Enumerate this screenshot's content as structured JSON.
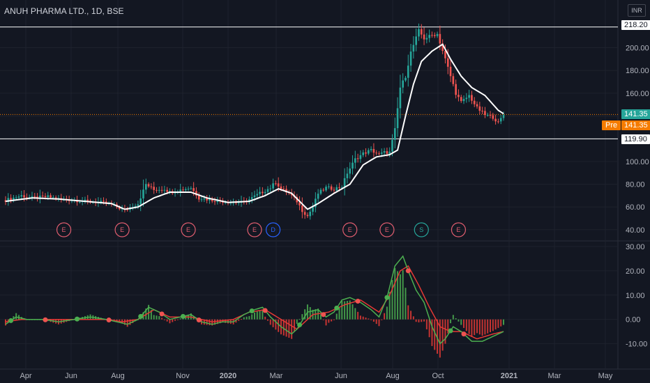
{
  "header": {
    "symbol_title": "ANUH PHARMA LTD., 1D, BSE",
    "currency_label": "INR"
  },
  "price_tags": {
    "high_line": "218.20",
    "last_price": "141.35",
    "pre_label": "Pre",
    "pre_price": "141.35",
    "low_line": "119.90"
  },
  "colors": {
    "background": "#131722",
    "grid": "#1e222d",
    "price_up": "#26a69a",
    "price_down": "#ef5350",
    "ma_line": "#ffffff",
    "dotted_last": "#f57c00",
    "macd_line": "#4caf50",
    "signal_line": "#e53935",
    "earnings_marker": "#e05d6f",
    "dividend_marker": "#2962ff",
    "split_marker": "#26a69a"
  },
  "chart_data": [
    {
      "type": "line",
      "panel": "price",
      "price_axis_ticks": [
        "200.00",
        "180.00",
        "160.00",
        "140.00",
        "120.00",
        "100.00",
        "80.00",
        "60.00",
        "40.00"
      ],
      "ylim": [
        32,
        226
      ],
      "xlabels": [
        "Apr",
        "Jun",
        "Aug",
        "Nov",
        "2020",
        "Mar",
        "Jun",
        "Aug",
        "Oct",
        "2021",
        "Mar",
        "May"
      ],
      "horizontal_lines": [
        218.2,
        119.9
      ],
      "last_price": 141.35,
      "candles_color_scheme": "green up / red down",
      "series": [
        {
          "role": "price",
          "points": [
            [
              0,
              66
            ],
            [
              6,
              70
            ],
            [
              10,
              68
            ],
            [
              16,
              69
            ],
            [
              20,
              67
            ],
            [
              26,
              66
            ],
            [
              30,
              65
            ],
            [
              36,
              64
            ],
            [
              40,
              62
            ],
            [
              45,
              57
            ],
            [
              48,
              61
            ],
            [
              50,
              63
            ],
            [
              53,
              80
            ],
            [
              56,
              75
            ],
            [
              60,
              76
            ],
            [
              62,
              73
            ],
            [
              66,
              75
            ],
            [
              70,
              77
            ],
            [
              73,
              68
            ],
            [
              78,
              66
            ],
            [
              82,
              65
            ],
            [
              86,
              64
            ],
            [
              90,
              64
            ],
            [
              96,
              72
            ],
            [
              100,
              77
            ],
            [
              102,
              82
            ],
            [
              104,
              76
            ],
            [
              107,
              72
            ],
            [
              110,
              65
            ],
            [
              112,
              57
            ],
            [
              114,
              52
            ],
            [
              116,
              60
            ],
            [
              118,
              72
            ],
            [
              121,
              77
            ],
            [
              124,
              76
            ],
            [
              127,
              78
            ],
            [
              129,
              90
            ],
            [
              132,
              102
            ],
            [
              135,
              107
            ],
            [
              138,
              110
            ],
            [
              141,
              106
            ],
            [
              143,
              108
            ],
            [
              145,
              108
            ],
            [
              147,
              128
            ],
            [
              149,
              165
            ],
            [
              151,
              175
            ],
            [
              153,
              196
            ],
            [
              156,
              215
            ],
            [
              158,
              208
            ],
            [
              161,
              211
            ],
            [
              163,
              212
            ],
            [
              166,
              190
            ],
            [
              168,
              175
            ],
            [
              170,
              160
            ],
            [
              172,
              152
            ],
            [
              175,
              158
            ],
            [
              178,
              147
            ],
            [
              181,
              141
            ],
            [
              184,
              139
            ],
            [
              186,
              134
            ],
            [
              188,
              141
            ]
          ]
        },
        {
          "role": "moving_average",
          "points": [
            [
              0,
              65
            ],
            [
              10,
              68
            ],
            [
              20,
              67
            ],
            [
              30,
              65
            ],
            [
              40,
              63
            ],
            [
              45,
              58
            ],
            [
              50,
              60
            ],
            [
              56,
              68
            ],
            [
              62,
              73
            ],
            [
              70,
              73
            ],
            [
              76,
              68
            ],
            [
              84,
              64
            ],
            [
              92,
              65
            ],
            [
              98,
              70
            ],
            [
              103,
              76
            ],
            [
              108,
              72
            ],
            [
              114,
              58
            ],
            [
              118,
              63
            ],
            [
              124,
              72
            ],
            [
              130,
              80
            ],
            [
              135,
              97
            ],
            [
              140,
              104
            ],
            [
              145,
              106
            ],
            [
              148,
              110
            ],
            [
              151,
              140
            ],
            [
              154,
              168
            ],
            [
              157,
              188
            ],
            [
              161,
              197
            ],
            [
              165,
              203
            ],
            [
              168,
              190
            ],
            [
              172,
              175
            ],
            [
              176,
              165
            ],
            [
              181,
              158
            ],
            [
              186,
              145
            ],
            [
              188,
              142
            ]
          ]
        }
      ],
      "event_markers": [
        {
          "label": "E",
          "x": 22
        },
        {
          "label": "E",
          "x": 44
        },
        {
          "label": "E",
          "x": 69
        },
        {
          "label": "E",
          "x": 94
        },
        {
          "label": "D",
          "x": 101
        },
        {
          "label": "E",
          "x": 130
        },
        {
          "label": "E",
          "x": 144
        },
        {
          "label": "S",
          "x": 157
        },
        {
          "label": "E",
          "x": 171
        }
      ]
    },
    {
      "type": "bar",
      "panel": "macd",
      "oscillator_axis_ticks": [
        "30.00",
        "20.00",
        "10.00",
        "0.00",
        "-10.00"
      ],
      "ylim": [
        -19,
        32
      ],
      "series": [
        {
          "role": "macd",
          "points": [
            [
              0,
              -2
            ],
            [
              4,
              1
            ],
            [
              8,
              0
            ],
            [
              14,
              0
            ],
            [
              20,
              -1
            ],
            [
              26,
              0
            ],
            [
              32,
              1
            ],
            [
              38,
              0
            ],
            [
              42,
              -1
            ],
            [
              46,
              -2
            ],
            [
              50,
              0
            ],
            [
              54,
              5
            ],
            [
              58,
              3
            ],
            [
              62,
              0
            ],
            [
              66,
              1
            ],
            [
              70,
              2
            ],
            [
              74,
              -1
            ],
            [
              78,
              -2
            ],
            [
              82,
              -1
            ],
            [
              86,
              -1
            ],
            [
              90,
              2
            ],
            [
              94,
              4
            ],
            [
              97,
              5
            ],
            [
              100,
              1
            ],
            [
              104,
              -3
            ],
            [
              108,
              -6
            ],
            [
              110,
              -4
            ],
            [
              114,
              3
            ],
            [
              118,
              4
            ],
            [
              121,
              1
            ],
            [
              124,
              3
            ],
            [
              127,
              8
            ],
            [
              130,
              9
            ],
            [
              134,
              7
            ],
            [
              138,
              4
            ],
            [
              141,
              1
            ],
            [
              144,
              9
            ],
            [
              147,
              22
            ],
            [
              150,
              26
            ],
            [
              152,
              20
            ],
            [
              155,
              12
            ],
            [
              158,
              7
            ],
            [
              161,
              -3
            ],
            [
              164,
              -10
            ],
            [
              166,
              -8
            ],
            [
              169,
              -3
            ],
            [
              172,
              -5
            ],
            [
              176,
              -9
            ],
            [
              180,
              -9
            ],
            [
              184,
              -7
            ],
            [
              188,
              -5
            ]
          ]
        },
        {
          "role": "signal",
          "points": [
            [
              0,
              -1
            ],
            [
              6,
              0
            ],
            [
              14,
              0
            ],
            [
              22,
              0
            ],
            [
              30,
              0
            ],
            [
              38,
              0
            ],
            [
              44,
              -1
            ],
            [
              50,
              0
            ],
            [
              56,
              4
            ],
            [
              62,
              1
            ],
            [
              70,
              1
            ],
            [
              78,
              -1
            ],
            [
              86,
              0
            ],
            [
              92,
              3
            ],
            [
              98,
              4
            ],
            [
              104,
              0
            ],
            [
              110,
              -4
            ],
            [
              116,
              2
            ],
            [
              122,
              3
            ],
            [
              128,
              6
            ],
            [
              134,
              8
            ],
            [
              141,
              3
            ],
            [
              145,
              10
            ],
            [
              149,
              20
            ],
            [
              152,
              22
            ],
            [
              156,
              14
            ],
            [
              160,
              5
            ],
            [
              164,
              -3
            ],
            [
              168,
              -5
            ],
            [
              172,
              -5
            ],
            [
              178,
              -8
            ],
            [
              184,
              -6
            ],
            [
              188,
              -5
            ]
          ]
        }
      ],
      "histogram": "difference of macd and signal, green above zero, red below"
    }
  ]
}
